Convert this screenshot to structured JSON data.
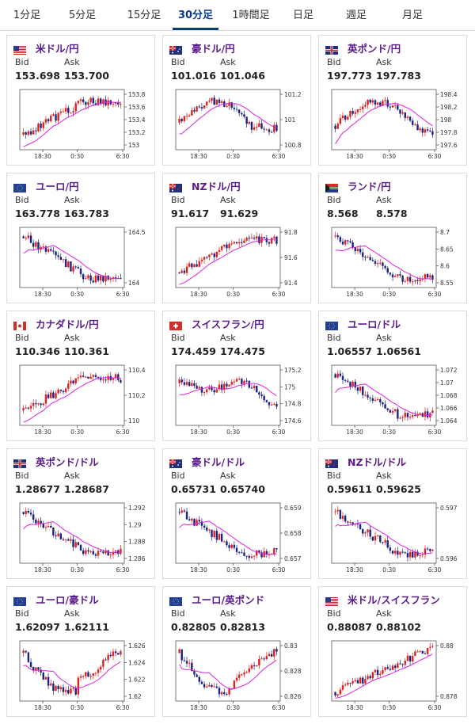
{
  "tabs": [
    {
      "label": "1分足",
      "active": false
    },
    {
      "label": "5分足",
      "active": false
    },
    {
      "label": "15分足",
      "active": false
    },
    {
      "label": "30分足",
      "active": true
    },
    {
      "label": "1時間足",
      "active": false
    },
    {
      "label": "日足",
      "active": false
    },
    {
      "label": "週足",
      "active": false
    },
    {
      "label": "月足",
      "active": false
    }
  ],
  "labels": {
    "bid": "Bid",
    "ask": "Ask"
  },
  "colors": {
    "up": "#e02020",
    "down": "#1a237e",
    "ma": "#e020e0",
    "accent": "#0d3b8c",
    "title": "#5a1a8c"
  },
  "cards": [
    {
      "pair": "米ドル/円",
      "flag": "us-flag",
      "bid": "153.698",
      "ask": "153.700",
      "yticks": [
        "153.8",
        "153.6",
        "153.4",
        "153.2",
        "153"
      ],
      "xticks": [
        "18:30",
        "0:30",
        "6:30"
      ],
      "shape": "rise-plateau"
    },
    {
      "pair": "豪ドル/円",
      "flag": "au-flag",
      "bid": "101.016",
      "ask": "101.046",
      "yticks": [
        "101.2",
        "101",
        "100.8"
      ],
      "xticks": [
        "18:30",
        "0:30",
        "6:30"
      ],
      "shape": "hump-down"
    },
    {
      "pair": "英ポンド/円",
      "flag": "gb-flag",
      "bid": "197.773",
      "ask": "197.783",
      "yticks": [
        "198.4",
        "198.2",
        "198",
        "197.8",
        "197.6"
      ],
      "xticks": [
        "18:30",
        "0:30",
        "6:30"
      ],
      "shape": "rise-then-fall"
    },
    {
      "pair": "ユーロ/円",
      "flag": "eu-flag",
      "bid": "163.778",
      "ask": "163.783",
      "yticks": [
        "164.5",
        "164"
      ],
      "xticks": [
        "18:30",
        "0:30",
        "6:30"
      ],
      "shape": "fall"
    },
    {
      "pair": "NZドル/円",
      "flag": "nz-flag",
      "bid": "91.617",
      "ask": "91.629",
      "yticks": [
        "91.8",
        "91.6",
        "91.4"
      ],
      "xticks": [
        "18:30",
        "0:30",
        "6:30"
      ],
      "shape": "rise-plateau"
    },
    {
      "pair": "ランド/円",
      "flag": "za-flag",
      "bid": "8.568",
      "ask": "8.578",
      "yticks": [
        "8.7",
        "8.65",
        "8.6",
        "8.55"
      ],
      "xticks": [
        "18:30",
        "0:30",
        "6:30"
      ],
      "shape": "fall"
    },
    {
      "pair": "カナダドル/円",
      "flag": "ca-flag",
      "bid": "110.346",
      "ask": "110.361",
      "yticks": [
        "110.4",
        "110.2",
        "110"
      ],
      "xticks": [
        "18:30",
        "0:30",
        "6:30"
      ],
      "shape": "rise-plateau"
    },
    {
      "pair": "スイスフラン/円",
      "flag": "ch-flag",
      "bid": "174.459",
      "ask": "174.475",
      "yticks": [
        "175.2",
        "175",
        "174.8",
        "174.6"
      ],
      "xticks": [
        "18:30",
        "0:30",
        "6:30"
      ],
      "shape": "fall-late"
    },
    {
      "pair": "ユーロ/ドル",
      "flag": "eu-flag",
      "bid": "1.06557",
      "ask": "1.06561",
      "yticks": [
        "1.072",
        "1.07",
        "1.068",
        "1.066",
        "1.064"
      ],
      "xticks": [
        "18:30",
        "0:30",
        "6:30"
      ],
      "shape": "fall"
    },
    {
      "pair": "英ポンド/ドル",
      "flag": "gb-flag",
      "bid": "1.28677",
      "ask": "1.28687",
      "yticks": [
        "1.292",
        "1.29",
        "1.288",
        "1.286"
      ],
      "xticks": [
        "18:30",
        "0:30",
        "6:30"
      ],
      "shape": "fall"
    },
    {
      "pair": "豪ドル/ドル",
      "flag": "au-flag",
      "bid": "0.65731",
      "ask": "0.65740",
      "yticks": [
        "0.659",
        "0.658",
        "0.657"
      ],
      "xticks": [
        "18:30",
        "0:30",
        "6:30"
      ],
      "shape": "fall"
    },
    {
      "pair": "NZドル/ドル",
      "flag": "nz-flag",
      "bid": "0.59611",
      "ask": "0.59625",
      "yticks": [
        "0.597",
        "0.596"
      ],
      "xticks": [
        "18:30",
        "0:30",
        "6:30"
      ],
      "shape": "fall"
    },
    {
      "pair": "ユーロ/豪ドル",
      "flag": "eu-flag",
      "bid": "1.62097",
      "ask": "1.62111",
      "yticks": [
        "1.626",
        "1.624",
        "1.622",
        "1.62"
      ],
      "xticks": [
        "18:30",
        "0:30",
        "6:30"
      ],
      "shape": "dip-recover"
    },
    {
      "pair": "ユーロ/英ポンド",
      "flag": "eu-flag",
      "bid": "0.82805",
      "ask": "0.82813",
      "yticks": [
        "0.83",
        "0.828",
        "0.826"
      ],
      "xticks": [
        "18:30",
        "0:30",
        "6:30"
      ],
      "shape": "dip-recover"
    },
    {
      "pair": "米ドル/スイスフラン",
      "flag": "us-flag",
      "bid": "0.88087",
      "ask": "0.88102",
      "yticks": [
        "0.88",
        "0.878"
      ],
      "xticks": [
        "18:30",
        "0:30",
        "6:30"
      ],
      "shape": "rise"
    }
  ]
}
